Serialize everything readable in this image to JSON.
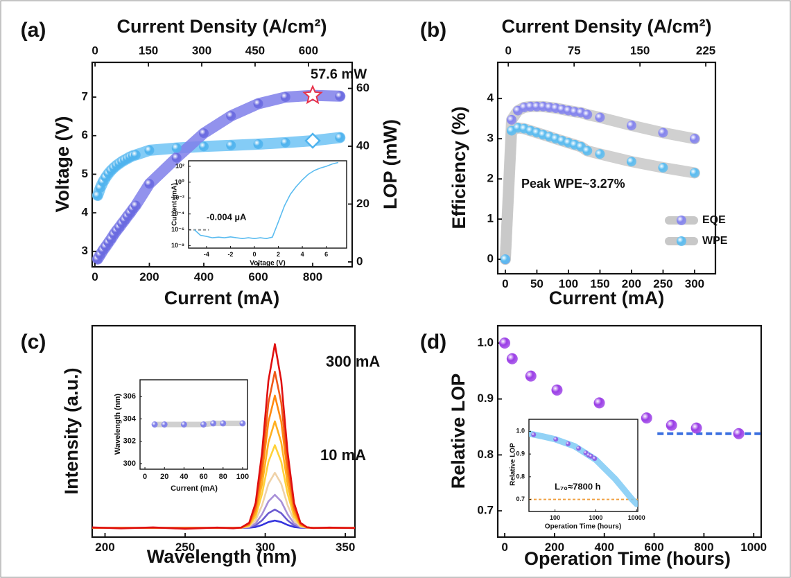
{
  "chart_data": [
    {
      "type": "line",
      "panel_label": "(a)",
      "xlabel": "Current (mA)",
      "xlim": [
        -10,
        945
      ],
      "xticks": [
        0,
        200,
        400,
        600,
        800
      ],
      "x2label": "Current Density (A/cm²)",
      "x2lim": [
        -8,
        723
      ],
      "x2ticks": [
        0,
        150,
        300,
        450,
        600
      ],
      "ylabel": "Voltage (V)",
      "ylim": [
        2.6,
        7.9
      ],
      "yticks": [
        3,
        4,
        5,
        6,
        7
      ],
      "y2label": "LOP (mW)",
      "y2lim": [
        -1.7,
        69
      ],
      "y2ticks": [
        0,
        20,
        40,
        60
      ],
      "x": [
        10,
        20,
        30,
        40,
        50,
        60,
        70,
        80,
        90,
        100,
        110,
        120,
        130,
        140,
        150,
        200,
        300,
        400,
        500,
        600,
        700,
        800,
        900
      ],
      "series": [
        {
          "color": "#4fb3ee",
          "band_color": "#6ec3f4",
          "marker": "sphere",
          "highlight_marker": "diamond",
          "highlight_color": "#4fb3ee",
          "values": [
            4.45,
            4.65,
            4.8,
            4.92,
            5.02,
            5.1,
            5.17,
            5.23,
            5.28,
            5.33,
            5.37,
            5.41,
            5.45,
            5.48,
            5.5,
            5.62,
            5.68,
            5.72,
            5.75,
            5.78,
            5.82,
            5.87,
            5.95
          ]
        },
        {
          "axis": "y2",
          "color": "#6a6ae0",
          "band_color": "#7f7fea",
          "marker": "sphere",
          "highlight_marker": "star",
          "highlight_color": "#e8334a",
          "values": [
            1,
            2.5,
            4,
            5.3,
            6.7,
            8,
            9.5,
            10.8,
            12,
            13.3,
            14.5,
            15.8,
            17,
            18.3,
            19.5,
            27,
            36,
            44.5,
            50.5,
            54.7,
            57,
            57.6,
            57.3
          ]
        }
      ],
      "annotations": [
        {
          "text": "57.6 mW",
          "color": "#e00000"
        }
      ]
    },
    {
      "type": "line",
      "xlabel": "Voltage (V)",
      "xlim": [
        -5.5,
        7.7
      ],
      "xticks": [
        -4,
        -2,
        0,
        2,
        4,
        6
      ],
      "ylabel": "Current (mA)",
      "yscale": "log",
      "ylim": [
        5e-09,
        500
      ],
      "yticks": [
        {
          "value": 100,
          "label": "10²"
        },
        {
          "value": 1,
          "label": "10⁰"
        },
        {
          "value": 0.01,
          "label": "10⁻²"
        },
        {
          "value": 0.0001,
          "label": "10⁻⁴"
        },
        {
          "value": 1e-06,
          "label": "10⁻⁶"
        },
        {
          "value": 1e-08,
          "label": "10⁻⁸"
        }
      ],
      "x": [
        -5,
        -4.5,
        -4,
        -3.5,
        -3,
        -2.5,
        -2,
        -1.5,
        -1,
        -0.5,
        0,
        0.5,
        1,
        1.5,
        2,
        2.5,
        3,
        3.5,
        4,
        4.5,
        5,
        5.5,
        6,
        6.5,
        7
      ],
      "series": [
        {
          "color": "#5bbcf0",
          "values": [
            1e-06,
            2e-07,
            1.5e-07,
            1e-07,
            1.2e-07,
            1e-07,
            1.3e-07,
            1e-07,
            8e-08,
            1e-07,
            8e-08,
            1e-07,
            8e-08,
            1.2e-07,
            1e-05,
            0.001,
            0.03,
            0.3,
            2,
            10,
            30,
            60,
            100,
            200,
            300
          ]
        }
      ],
      "reference_line": {
        "x": [
          -5.5,
          -3.8
        ],
        "y": 1e-06,
        "color": "#888888"
      },
      "annotations": [
        {
          "text": "-0.004 µA",
          "color": "#111111"
        }
      ]
    },
    {
      "type": "line",
      "panel_label": "(b)",
      "xlabel": "Current (mA)",
      "xlim": [
        -12,
        333
      ],
      "xticks": [
        0,
        50,
        100,
        150,
        200,
        250,
        300
      ],
      "x2label": "Current Density (A/cm²)",
      "x2lim": [
        -12,
        236
      ],
      "x2ticks": [
        0,
        75,
        150,
        225
      ],
      "ylabel": "Efficiency (%)",
      "ylim": [
        -0.36,
        4.9
      ],
      "yticks": [
        0,
        1,
        2,
        3,
        4
      ],
      "x": [
        0,
        10,
        20,
        30,
        40,
        50,
        60,
        70,
        80,
        90,
        100,
        110,
        120,
        130,
        150,
        200,
        250,
        300
      ],
      "series": [
        {
          "name": "EQE",
          "color": "#8484ee",
          "band_color": "#c8c8c8",
          "marker": "sphere",
          "values": [
            0,
            3.47,
            3.7,
            3.78,
            3.8,
            3.8,
            3.8,
            3.78,
            3.76,
            3.73,
            3.7,
            3.67,
            3.65,
            3.6,
            3.53,
            3.33,
            3.15,
            3.0
          ]
        },
        {
          "name": "WPE",
          "color": "#5bbcf0",
          "band_color": "#c8c8c8",
          "marker": "sphere",
          "values": [
            0,
            3.2,
            3.27,
            3.25,
            3.2,
            3.15,
            3.1,
            3.05,
            3.0,
            2.95,
            2.9,
            2.85,
            2.8,
            2.7,
            2.62,
            2.43,
            2.28,
            2.15
          ]
        }
      ],
      "legend": "lower right",
      "annotations": [
        {
          "text": "Peak WPE~3.27%",
          "color": "#4fb3ee"
        }
      ]
    },
    {
      "type": "line",
      "panel_label": "(c)",
      "xlabel": "Wavelength (nm)",
      "xlim": [
        192,
        356
      ],
      "xticks": [
        200,
        250,
        300,
        350
      ],
      "ylabel": "Intensity (a.u.)",
      "ylim": [
        -0.03,
        1.12
      ],
      "yticks": [],
      "x": [
        190,
        210,
        230,
        250,
        270,
        280,
        285,
        290,
        294,
        298,
        302,
        306,
        310,
        314,
        318,
        322,
        326,
        330,
        340,
        360
      ],
      "series": [
        {
          "color": "#3333dd",
          "values": [
            0.02,
            0.02,
            0.02,
            0.02,
            0.02,
            0.02,
            0.02,
            0.021,
            0.025,
            0.036,
            0.052,
            0.06,
            0.052,
            0.036,
            0.025,
            0.021,
            0.02,
            0.02,
            0.02,
            0.02
          ]
        },
        {
          "color": "#6a5ad0",
          "values": [
            0.02,
            0.02,
            0.02,
            0.02,
            0.02,
            0.02,
            0.02,
            0.023,
            0.034,
            0.061,
            0.1,
            0.12,
            0.1,
            0.061,
            0.034,
            0.023,
            0.02,
            0.02,
            0.02,
            0.02
          ]
        },
        {
          "color": "#a890d8",
          "values": [
            0.02,
            0.02,
            0.02,
            0.02,
            0.02,
            0.02,
            0.02,
            0.025,
            0.044,
            0.094,
            0.164,
            0.2,
            0.164,
            0.094,
            0.044,
            0.025,
            0.021,
            0.02,
            0.02,
            0.02
          ]
        },
        {
          "color": "#efd2a8",
          "values": [
            0.02,
            0.02,
            0.02,
            0.02,
            0.02,
            0.02,
            0.021,
            0.028,
            0.061,
            0.143,
            0.26,
            0.32,
            0.26,
            0.143,
            0.061,
            0.028,
            0.021,
            0.02,
            0.02,
            0.02
          ]
        },
        {
          "color": "#ffd23a",
          "values": [
            0.02,
            0.02,
            0.02,
            0.02,
            0.02,
            0.02,
            0.021,
            0.033,
            0.081,
            0.205,
            0.38,
            0.47,
            0.38,
            0.205,
            0.081,
            0.033,
            0.022,
            0.02,
            0.02,
            0.02
          ]
        },
        {
          "color": "#ffb020",
          "values": [
            0.02,
            0.02,
            0.02,
            0.02,
            0.02,
            0.02,
            0.021,
            0.036,
            0.098,
            0.258,
            0.485,
            0.6,
            0.485,
            0.258,
            0.098,
            0.036,
            0.022,
            0.02,
            0.02,
            0.02
          ]
        },
        {
          "color": "#ff8a10",
          "values": [
            0.02,
            0.02,
            0.02,
            0.02,
            0.02,
            0.02,
            0.021,
            0.04,
            0.117,
            0.316,
            0.597,
            0.74,
            0.597,
            0.316,
            0.117,
            0.04,
            0.023,
            0.02,
            0.02,
            0.02
          ]
        },
        {
          "color": "#f05a18",
          "values": [
            0.02,
            0.02,
            0.02,
            0.02,
            0.02,
            0.02,
            0.022,
            0.044,
            0.135,
            0.369,
            0.701,
            0.87,
            0.701,
            0.369,
            0.135,
            0.044,
            0.023,
            0.02,
            0.02,
            0.02
          ]
        },
        {
          "color": "#e01010",
          "values": [
            0.024,
            0.017,
            0.023,
            0.015,
            0.022,
            0.018,
            0.022,
            0.048,
            0.155,
            0.431,
            0.821,
            1.02,
            0.821,
            0.431,
            0.155,
            0.048,
            0.024,
            0.019,
            0.022,
            0.018
          ]
        }
      ],
      "annotations": [
        {
          "text": "300 mA",
          "color": "#e00000"
        },
        {
          "text": "10 mA",
          "color": "#3333dd"
        }
      ]
    },
    {
      "type": "line",
      "xlabel": "Current (mA)",
      "xlim": [
        -5,
        105
      ],
      "xticks": [
        0,
        20,
        40,
        60,
        80,
        100
      ],
      "ylabel": "Wavelength (nm)",
      "ylim": [
        299.5,
        307.5
      ],
      "yticks": [
        300,
        302,
        304,
        306
      ],
      "x": [
        10,
        20,
        40,
        60,
        70,
        80,
        100
      ],
      "series": [
        {
          "color": "#7b7bea",
          "band_color": "#c8c8c8",
          "marker": "sphere",
          "values": [
            303.5,
            303.5,
            303.5,
            303.5,
            303.6,
            303.6,
            303.6
          ]
        }
      ]
    },
    {
      "type": "scatter",
      "panel_label": "(d)",
      "xlabel": "Operation Time (hours)",
      "xlim": [
        -28,
        1030
      ],
      "xticks": [
        0,
        200,
        400,
        600,
        800,
        1000
      ],
      "ylabel": "Relative LOP",
      "ylim": [
        0.653,
        1.031
      ],
      "yticks": [
        {
          "value": 1,
          "label": "1.0"
        },
        0.9,
        0.8,
        0.7
      ],
      "x": [
        0,
        30,
        105,
        210,
        380,
        570,
        670,
        770,
        940
      ],
      "series": [
        {
          "color": "#9a3de6",
          "marker": "sphere",
          "values": [
            1.0,
            0.972,
            0.941,
            0.916,
            0.893,
            0.866,
            0.853,
            0.848,
            0.838
          ]
        }
      ],
      "reference_line": {
        "x": [
          613,
          1030
        ],
        "y": 0.838,
        "color": "#3a6fe0"
      }
    },
    {
      "type": "line",
      "xlabel": "Operation Time (hours)",
      "xscale": "log",
      "xlim": [
        23,
        10700
      ],
      "xticks": [
        100,
        1000,
        10000
      ],
      "ylabel": "Relative LOP",
      "ylim": [
        0.647,
        1.053
      ],
      "yticks": [
        {
          "value": 1,
          "label": "1.0"
        },
        0.9,
        0.8,
        0.7
      ],
      "series": [
        {
          "color": "#6ec3f4",
          "band_color": "#7fcaf5",
          "x": [
            23,
            50,
            100,
            300,
            1000,
            3000,
            7800,
            10000
          ],
          "values": [
            0.99,
            0.978,
            0.965,
            0.935,
            0.875,
            0.79,
            0.7,
            0.68
          ]
        },
        {
          "color": "#8a5ae6",
          "marker": "sphere",
          "x": [
            30,
            105,
            210,
            380,
            570,
            670,
            770,
            940
          ],
          "values": [
            0.985,
            0.965,
            0.945,
            0.925,
            0.905,
            0.895,
            0.89,
            0.88
          ]
        }
      ],
      "reference_line": {
        "x": [
          23,
          10700
        ],
        "y": 0.7,
        "color": "#f0a040"
      },
      "annotations": [
        {
          "text": "L₇₀≈7800 h",
          "color": "#111111"
        }
      ]
    }
  ]
}
